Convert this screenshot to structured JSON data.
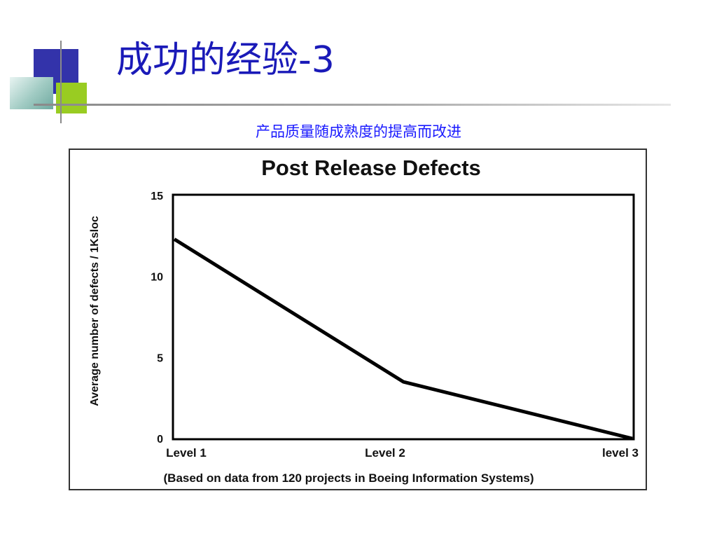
{
  "slide": {
    "title": "成功的经验-3",
    "subtitle": "产品质量随成熟度的提高而改进"
  },
  "colors": {
    "title": "#1a1ab8",
    "subtitle": "#1a1aff",
    "deco_blue": "#3333aa",
    "deco_green": "#99cc22",
    "deco_teal": "#6fa9a0",
    "line": "#000000"
  },
  "chart_data": {
    "type": "line",
    "title": "Post Release Defects",
    "ylabel": "Average number of defects / 1Ksloc",
    "xlabel": "",
    "categories": [
      "Level 1",
      "Level 2",
      "level 3"
    ],
    "yticks": [
      "0",
      "5",
      "10",
      "15"
    ],
    "ylim": [
      0,
      15
    ],
    "grid": false,
    "series": [
      {
        "values": [
          12.3,
          3.5,
          0
        ]
      }
    ],
    "note": "(Based on data from 120 projects in Boeing Information Systems)"
  }
}
